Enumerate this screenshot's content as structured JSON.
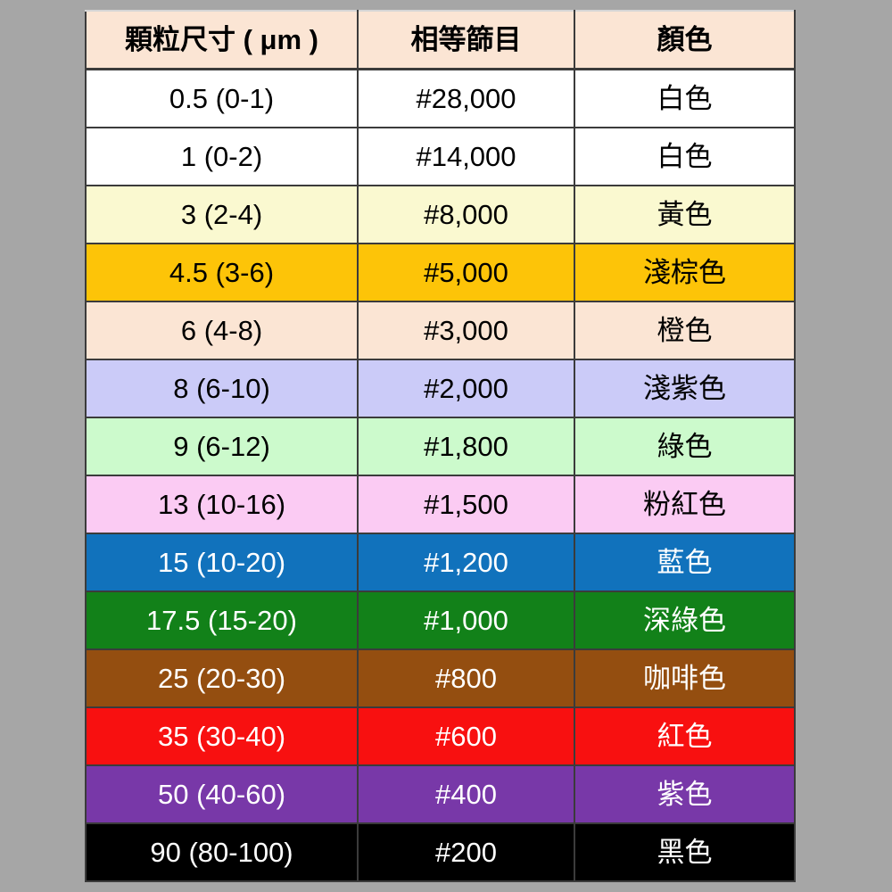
{
  "page": {
    "background_color": "#A6A6A6",
    "grid_border_color": "#3B3B3B"
  },
  "table": {
    "columns": [
      {
        "key": "size",
        "label": "顆粒尺寸 ( μm )"
      },
      {
        "key": "mesh",
        "label": "相等篩目"
      },
      {
        "key": "color_name",
        "label": "顏色"
      }
    ],
    "header": {
      "bg": "#FBE5D4",
      "fg": "#000000"
    },
    "rows": [
      {
        "size": "0.5 (0-1)",
        "mesh": "#28,000",
        "color_name": "白色",
        "bg": "#FFFFFF",
        "fg": "#000000"
      },
      {
        "size": "1 (0-2)",
        "mesh": "#14,000",
        "color_name": "白色",
        "bg": "#FFFFFF",
        "fg": "#000000"
      },
      {
        "size": "3 (2-4)",
        "mesh": "#8,000",
        "color_name": "黃色",
        "bg": "#FAF9D0",
        "fg": "#000000"
      },
      {
        "size": "4.5 (3-6)",
        "mesh": "#5,000",
        "color_name": "淺棕色",
        "bg": "#FDC408",
        "fg": "#000000"
      },
      {
        "size": "6 (4-8)",
        "mesh": "#3,000",
        "color_name": "橙色",
        "bg": "#FBE5D4",
        "fg": "#000000"
      },
      {
        "size": "8 (6-10)",
        "mesh": "#2,000",
        "color_name": "淺紫色",
        "bg": "#CBCBF8",
        "fg": "#000000"
      },
      {
        "size": "9 (6-12)",
        "mesh": "#1,800",
        "color_name": "綠色",
        "bg": "#CCFACC",
        "fg": "#000000"
      },
      {
        "size": "13 (10-16)",
        "mesh": "#1,500",
        "color_name": "粉紅色",
        "bg": "#FBCBF3",
        "fg": "#000000"
      },
      {
        "size": "15 (10-20)",
        "mesh": "#1,200",
        "color_name": "藍色",
        "bg": "#1172BC",
        "fg": "#FFFFFF"
      },
      {
        "size": "17.5 (15-20)",
        "mesh": "#1,000",
        "color_name": "深綠色",
        "bg": "#128119",
        "fg": "#FFFFFF"
      },
      {
        "size": "25 (20-30)",
        "mesh": "#800",
        "color_name": "咖啡色",
        "bg": "#944E10",
        "fg": "#FFFFFF"
      },
      {
        "size": "35 (30-40)",
        "mesh": "#600",
        "color_name": "紅色",
        "bg": "#F81010",
        "fg": "#FFFFFF"
      },
      {
        "size": "50 (40-60)",
        "mesh": "#400",
        "color_name": "紫色",
        "bg": "#7838A8",
        "fg": "#FFFFFF"
      },
      {
        "size": "90 (80-100)",
        "mesh": "#200",
        "color_name": "黑色",
        "bg": "#000000",
        "fg": "#FFFFFF"
      }
    ]
  },
  "chart_data": {
    "type": "table",
    "title": "",
    "columns": [
      "顆粒尺寸 ( μm )",
      "相等篩目",
      "顏色"
    ],
    "rows": [
      [
        "0.5 (0-1)",
        "#28,000",
        "白色"
      ],
      [
        "1 (0-2)",
        "#14,000",
        "白色"
      ],
      [
        "3 (2-4)",
        "#8,000",
        "黃色"
      ],
      [
        "4.5 (3-6)",
        "#5,000",
        "淺棕色"
      ],
      [
        "6 (4-8)",
        "#3,000",
        "橙色"
      ],
      [
        "8 (6-10)",
        "#2,000",
        "淺紫色"
      ],
      [
        "9 (6-12)",
        "#1,800",
        "綠色"
      ],
      [
        "13 (10-16)",
        "#1,500",
        "粉紅色"
      ],
      [
        "15 (10-20)",
        "#1,200",
        "藍色"
      ],
      [
        "17.5 (15-20)",
        "#1,000",
        "深綠色"
      ],
      [
        "25 (20-30)",
        "#800",
        "咖啡色"
      ],
      [
        "35 (30-40)",
        "#600",
        "紅色"
      ],
      [
        "50 (40-60)",
        "#400",
        "紫色"
      ],
      [
        "90 (80-100)",
        "#200",
        "黑色"
      ]
    ]
  }
}
